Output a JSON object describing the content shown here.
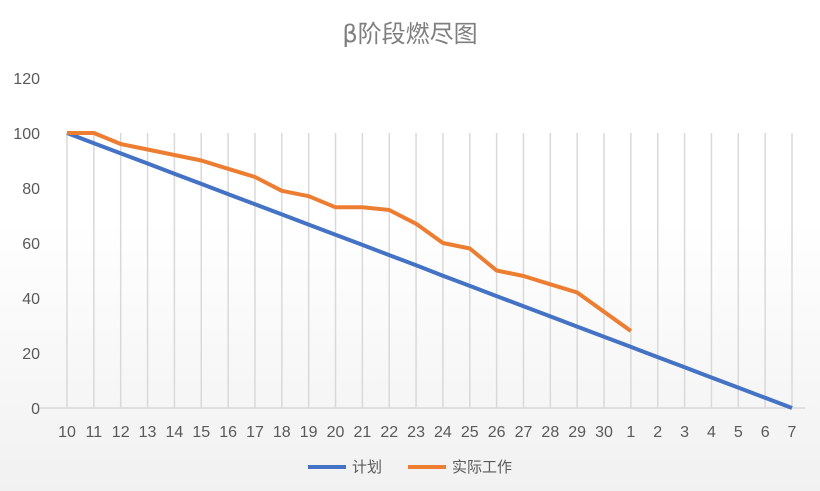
{
  "chart_data": {
    "type": "line",
    "title": "β阶段燃尽图",
    "xlabel": "",
    "ylabel": "",
    "ylim": [
      0,
      120
    ],
    "yticks": [
      0,
      20,
      40,
      60,
      80,
      100,
      120
    ],
    "grid": "vertical",
    "legend_position": "bottom",
    "categories": [
      "10",
      "11",
      "12",
      "13",
      "14",
      "15",
      "16",
      "17",
      "18",
      "19",
      "20",
      "21",
      "22",
      "23",
      "24",
      "25",
      "26",
      "27",
      "28",
      "29",
      "30",
      "1",
      "2",
      "3",
      "4",
      "5",
      "6",
      "7"
    ],
    "series": [
      {
        "name": "计划",
        "color": "#4472c4",
        "values": [
          100,
          96.3,
          92.6,
          88.9,
          85.2,
          81.5,
          77.8,
          74.1,
          70.4,
          66.7,
          63.0,
          59.3,
          55.6,
          51.9,
          48.1,
          44.4,
          40.7,
          37.0,
          33.3,
          29.6,
          25.9,
          22.2,
          18.5,
          14.8,
          11.1,
          7.4,
          3.7,
          0
        ]
      },
      {
        "name": "实际工作",
        "color": "#ed7d31",
        "values": [
          100,
          100,
          96,
          94,
          92,
          90,
          87,
          84,
          79,
          77,
          73,
          73,
          72,
          67,
          60,
          58,
          50,
          48,
          45,
          42,
          35,
          28,
          null,
          null,
          null,
          null,
          null,
          null
        ]
      }
    ]
  }
}
